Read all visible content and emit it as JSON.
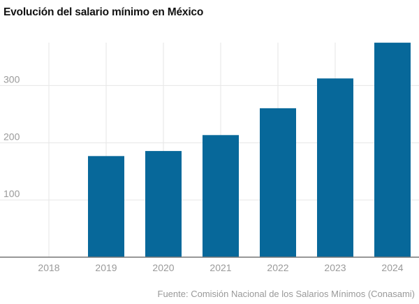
{
  "chart_data": {
    "type": "bar",
    "title": "Evolución del salario mínimo en México",
    "xlabel": "",
    "ylabel": "",
    "categories": [
      "2018",
      "2019",
      "2020",
      "2021",
      "2022",
      "2023",
      "2024"
    ],
    "values": [
      null,
      176.72,
      185.56,
      213.39,
      260.34,
      312.41,
      374.89
    ],
    "ylim": [
      0,
      375
    ],
    "yticks": [
      100,
      200,
      300
    ],
    "grid": true,
    "bar_color": "#07689a",
    "source": "Fuente: Comisión Nacional de los Salarios Mínimos (Conasami)"
  }
}
